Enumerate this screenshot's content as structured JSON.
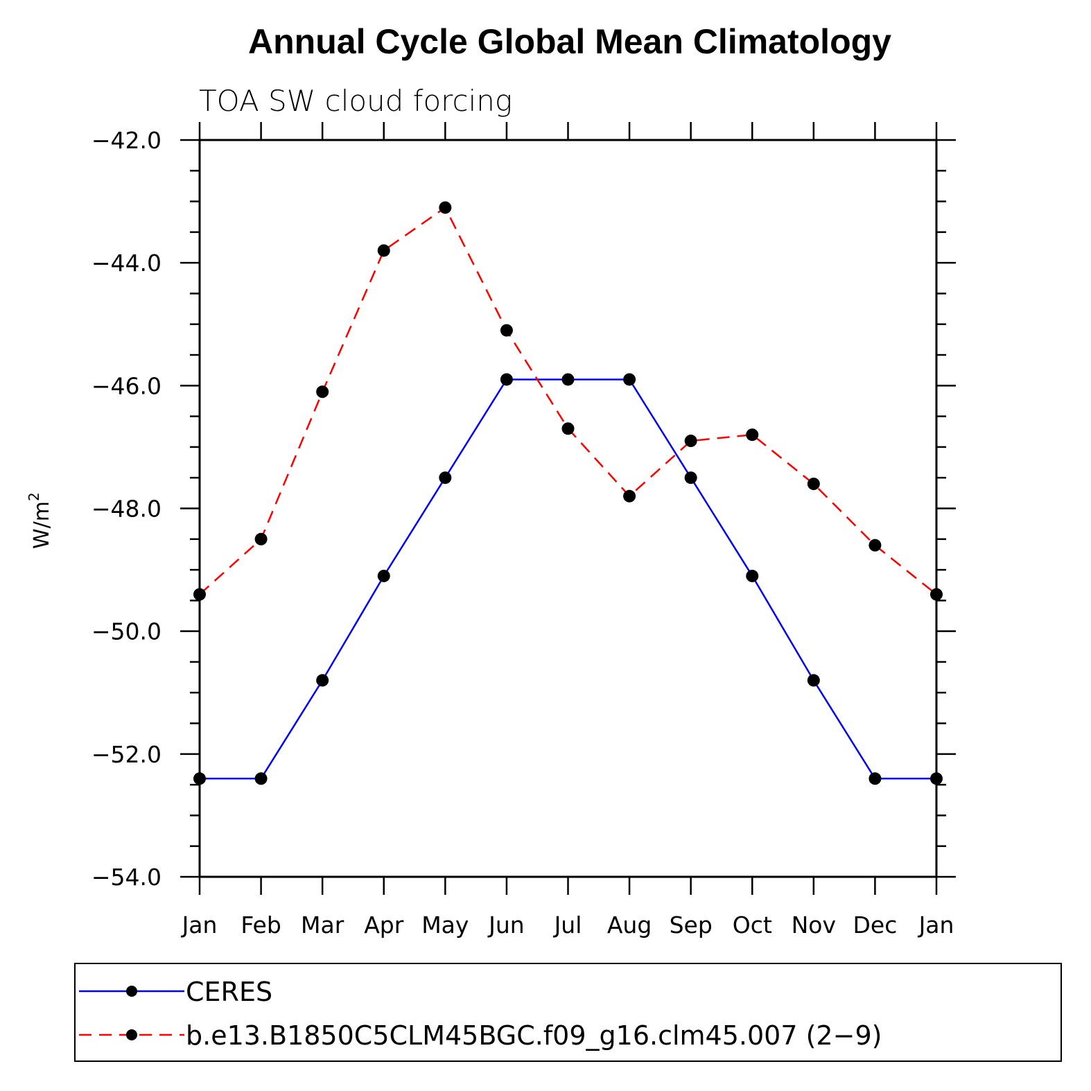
{
  "chart_data": {
    "type": "line",
    "title": "Annual Cycle Global Mean Climatology",
    "subtitle": "TOA SW cloud forcing",
    "ylabel": "W/m",
    "ylabel_sup": "2",
    "xlabel": "",
    "categories": [
      "Jan",
      "Feb",
      "Mar",
      "Apr",
      "May",
      "Jun",
      "Jul",
      "Aug",
      "Sep",
      "Oct",
      "Nov",
      "Dec",
      "Jan"
    ],
    "ylim": [
      -54.0,
      -42.0
    ],
    "yticks": [
      -42.0,
      -44.0,
      -46.0,
      -48.0,
      -50.0,
      -52.0,
      -54.0
    ],
    "ytick_labels": [
      "−42.0",
      "−44.0",
      "−46.0",
      "−48.0",
      "−50.0",
      "−52.0",
      "−54.0"
    ],
    "series": [
      {
        "name": "CERES",
        "color": "#0000ff",
        "dash": "solid",
        "values": [
          -52.4,
          -52.4,
          -50.8,
          -49.1,
          -47.5,
          -45.9,
          -45.9,
          -45.9,
          -47.5,
          -49.1,
          -50.8,
          -52.4,
          -52.4
        ]
      },
      {
        "name": "b.e13.B1850C5CLM45BGC.f09_g16.clm45.007 (2−9)",
        "color": "#ff0000",
        "dash": "dashed",
        "values": [
          -49.4,
          -48.5,
          -46.1,
          -43.8,
          -43.1,
          -45.1,
          -46.7,
          -47.8,
          -46.9,
          -46.8,
          -47.6,
          -48.6,
          -49.4
        ]
      }
    ],
    "marker_color": "#000000",
    "legend_position": "bottom",
    "grid": false
  }
}
